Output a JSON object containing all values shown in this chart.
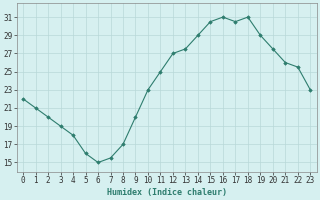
{
  "x": [
    0,
    1,
    2,
    3,
    4,
    5,
    6,
    7,
    8,
    9,
    10,
    11,
    12,
    13,
    14,
    15,
    16,
    17,
    18,
    19,
    20,
    21,
    22,
    23
  ],
  "y": [
    22,
    21,
    20,
    19,
    18,
    16,
    15,
    15.5,
    17,
    20,
    23,
    25,
    27,
    27.5,
    29,
    30.5,
    31,
    30.5,
    31,
    29,
    27.5,
    26,
    25.5,
    23
  ],
  "line_color": "#2e7d6e",
  "marker": "D",
  "marker_size": 1.8,
  "bg_color": "#d6f0f0",
  "grid_color": "#b8d8d8",
  "xlabel": "Humidex (Indice chaleur)",
  "xlabel_fontsize": 6.0,
  "tick_fontsize": 5.5,
  "ylabel_ticks": [
    15,
    17,
    19,
    21,
    23,
    25,
    27,
    29,
    31
  ],
  "xlim": [
    -0.5,
    23.5
  ],
  "ylim": [
    14.0,
    32.5
  ]
}
